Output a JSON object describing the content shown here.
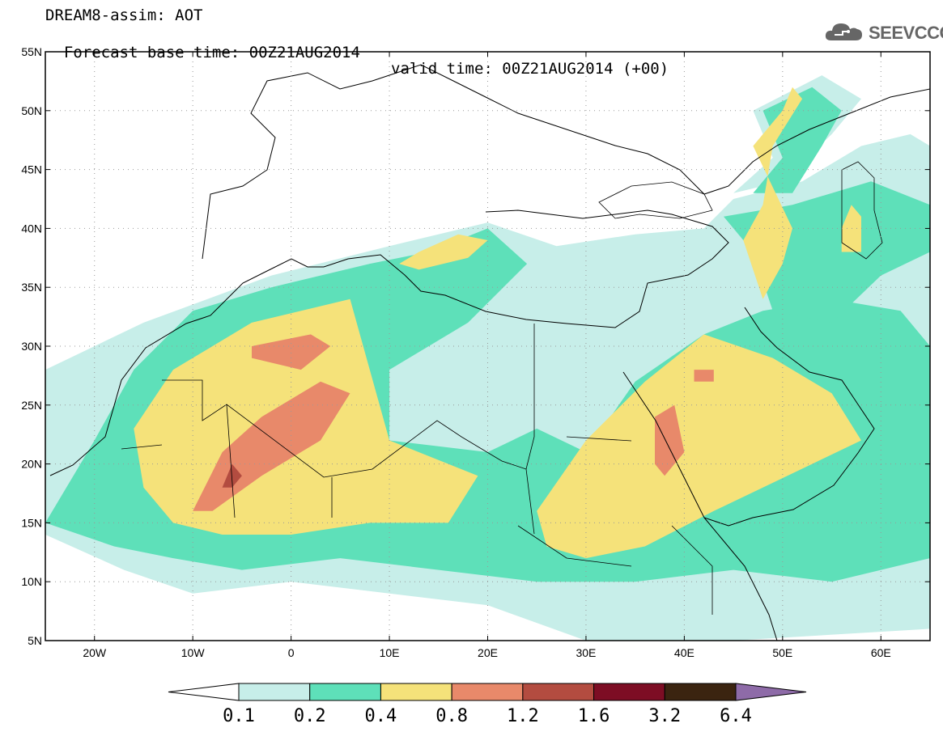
{
  "title": {
    "line1": "DREAM8-assim: AOT",
    "line2": "Forecast base time: 00Z21AUG2014",
    "valid": "valid time: 00Z21AUG2014 (+00)"
  },
  "logo": {
    "text": "SEEVCCC",
    "icon": "cloud-icon"
  },
  "axes": {
    "lon_range": [
      -25,
      65
    ],
    "lat_range": [
      5,
      55
    ],
    "x_ticks": [
      {
        "lon": -20,
        "label": "20W"
      },
      {
        "lon": -10,
        "label": "10W"
      },
      {
        "lon": 0,
        "label": "0"
      },
      {
        "lon": 10,
        "label": "10E"
      },
      {
        "lon": 20,
        "label": "20E"
      },
      {
        "lon": 30,
        "label": "30E"
      },
      {
        "lon": 40,
        "label": "40E"
      },
      {
        "lon": 50,
        "label": "50E"
      },
      {
        "lon": 60,
        "label": "60E"
      }
    ],
    "y_ticks": [
      {
        "lat": 55,
        "label": "55N"
      },
      {
        "lat": 50,
        "label": "50N"
      },
      {
        "lat": 45,
        "label": "45N"
      },
      {
        "lat": 40,
        "label": "40N"
      },
      {
        "lat": 35,
        "label": "35N"
      },
      {
        "lat": 30,
        "label": "30N"
      },
      {
        "lat": 25,
        "label": "25N"
      },
      {
        "lat": 20,
        "label": "20N"
      },
      {
        "lat": 15,
        "label": "15N"
      },
      {
        "lat": 10,
        "label": "10N"
      },
      {
        "lat": 5,
        "label": "5N"
      }
    ],
    "grid": "dotted"
  },
  "colorbar": {
    "levels": [
      "0.1",
      "0.2",
      "0.4",
      "0.8",
      "1.2",
      "1.6",
      "3.2",
      "6.4"
    ],
    "colors": [
      "#ffffff",
      "#c7eee9",
      "#5ee0b9",
      "#f5e27a",
      "#e8896a",
      "#b34c40",
      "#7d0d24",
      "#3b2410",
      "#8e6ba8"
    ]
  },
  "chart_data": {
    "type": "heatmap",
    "variable": "AOT",
    "levels": [
      0.1,
      0.2,
      0.4,
      0.8,
      1.2,
      1.6,
      3.2,
      6.4
    ],
    "regions": [
      {
        "level": 0.1,
        "lonlat": [
          [
            -25,
            28
          ],
          [
            -15,
            32
          ],
          [
            -2,
            36
          ],
          [
            10,
            38.5
          ],
          [
            20,
            40.5
          ],
          [
            27,
            38.5
          ],
          [
            35,
            39.5
          ],
          [
            42,
            40
          ],
          [
            45,
            42.5
          ],
          [
            52,
            44
          ],
          [
            58,
            47
          ],
          [
            63,
            48
          ],
          [
            65,
            47
          ],
          [
            65,
            6
          ],
          [
            45,
            5
          ],
          [
            30,
            5
          ],
          [
            20,
            8
          ],
          [
            10,
            9
          ],
          [
            0,
            10
          ],
          [
            -10,
            9
          ],
          [
            -17,
            11
          ],
          [
            -25,
            14
          ]
        ]
      },
      {
        "level": 0.1,
        "lonlat": [
          [
            45,
            43
          ],
          [
            49,
            46
          ],
          [
            47,
            50
          ],
          [
            54,
            53
          ],
          [
            58,
            51
          ],
          [
            55,
            48
          ],
          [
            50,
            44
          ]
        ]
      },
      {
        "level": 0.2,
        "lonlat": [
          [
            -25,
            15
          ],
          [
            -20,
            22
          ],
          [
            -16,
            28
          ],
          [
            -10,
            33
          ],
          [
            -2,
            35
          ],
          [
            8,
            37
          ],
          [
            14,
            38
          ],
          [
            20,
            40
          ],
          [
            24,
            37
          ],
          [
            18,
            32
          ],
          [
            10,
            28
          ],
          [
            10,
            22
          ],
          [
            20,
            21
          ],
          [
            25,
            23
          ],
          [
            30,
            21
          ],
          [
            35,
            27
          ],
          [
            42,
            31
          ],
          [
            48,
            33
          ],
          [
            55,
            34
          ],
          [
            62,
            33
          ],
          [
            65,
            30
          ],
          [
            65,
            12
          ],
          [
            55,
            10
          ],
          [
            45,
            11
          ],
          [
            35,
            10
          ],
          [
            25,
            10
          ],
          [
            15,
            11
          ],
          [
            5,
            12
          ],
          [
            -5,
            11
          ],
          [
            -12,
            12
          ],
          [
            -18,
            13
          ]
        ]
      },
      {
        "level": 0.2,
        "lonlat": [
          [
            47,
            43
          ],
          [
            50,
            46
          ],
          [
            48,
            50
          ],
          [
            53,
            52
          ],
          [
            56,
            50
          ],
          [
            54,
            47
          ],
          [
            51,
            43
          ]
        ]
      },
      {
        "level": 0.2,
        "lonlat": [
          [
            44,
            41
          ],
          [
            47,
            38
          ],
          [
            49,
            33
          ],
          [
            55,
            32
          ],
          [
            60,
            36
          ],
          [
            65,
            38
          ],
          [
            65,
            42
          ],
          [
            59,
            44
          ],
          [
            51,
            42
          ]
        ]
      },
      {
        "level": 0.4,
        "lonlat": [
          [
            -16,
            23
          ],
          [
            -12,
            28
          ],
          [
            -4,
            32
          ],
          [
            6,
            34
          ],
          [
            8,
            28
          ],
          [
            10,
            22
          ],
          [
            19,
            19
          ],
          [
            16,
            15
          ],
          [
            8,
            15
          ],
          [
            0,
            14
          ],
          [
            -7,
            14
          ],
          [
            -12,
            15
          ],
          [
            -15,
            18
          ]
        ]
      },
      {
        "level": 0.4,
        "lonlat": [
          [
            25,
            16
          ],
          [
            30,
            22
          ],
          [
            36,
            27
          ],
          [
            42,
            31
          ],
          [
            49,
            29
          ],
          [
            55,
            26
          ],
          [
            58,
            22
          ],
          [
            53,
            20
          ],
          [
            43,
            16
          ],
          [
            36,
            13
          ],
          [
            30,
            12
          ],
          [
            26,
            13
          ]
        ]
      },
      {
        "level": 0.4,
        "lonlat": [
          [
            11,
            37
          ],
          [
            13,
            38
          ],
          [
            17,
            39.5
          ],
          [
            20,
            39
          ],
          [
            18,
            37.5
          ],
          [
            13,
            36.5
          ]
        ]
      },
      {
        "level": 0.4,
        "lonlat": [
          [
            47,
            47
          ],
          [
            50,
            50
          ],
          [
            51,
            52
          ],
          [
            52,
            51
          ],
          [
            49,
            47
          ],
          [
            48,
            42
          ],
          [
            46,
            39
          ],
          [
            48,
            34
          ],
          [
            50,
            37
          ],
          [
            51,
            40
          ]
        ]
      },
      {
        "level": 0.4,
        "lonlat": [
          [
            56,
            40
          ],
          [
            57,
            42
          ],
          [
            58,
            41
          ],
          [
            58,
            38
          ],
          [
            56,
            38
          ]
        ]
      },
      {
        "level": 0.8,
        "lonlat": [
          [
            -10,
            16
          ],
          [
            -7,
            21
          ],
          [
            -3,
            24
          ],
          [
            3,
            27
          ],
          [
            6,
            26
          ],
          [
            3,
            22
          ],
          [
            -3,
            19
          ],
          [
            -8,
            16
          ]
        ]
      },
      {
        "level": 0.8,
        "lonlat": [
          [
            -4,
            29
          ],
          [
            1,
            28
          ],
          [
            4,
            30
          ],
          [
            2,
            31
          ],
          [
            -4,
            30
          ]
        ]
      },
      {
        "level": 0.8,
        "lonlat": [
          [
            37,
            20
          ],
          [
            37,
            24
          ],
          [
            39,
            25
          ],
          [
            40,
            21
          ],
          [
            38,
            19
          ]
        ]
      },
      {
        "level": 0.8,
        "lonlat": [
          [
            41,
            28
          ],
          [
            43,
            28
          ],
          [
            43,
            27
          ],
          [
            41,
            27
          ]
        ]
      },
      {
        "level": 1.2,
        "lonlat": [
          [
            -7,
            18
          ],
          [
            -6,
            20
          ],
          [
            -5,
            19
          ],
          [
            -6,
            18
          ]
        ]
      }
    ]
  }
}
